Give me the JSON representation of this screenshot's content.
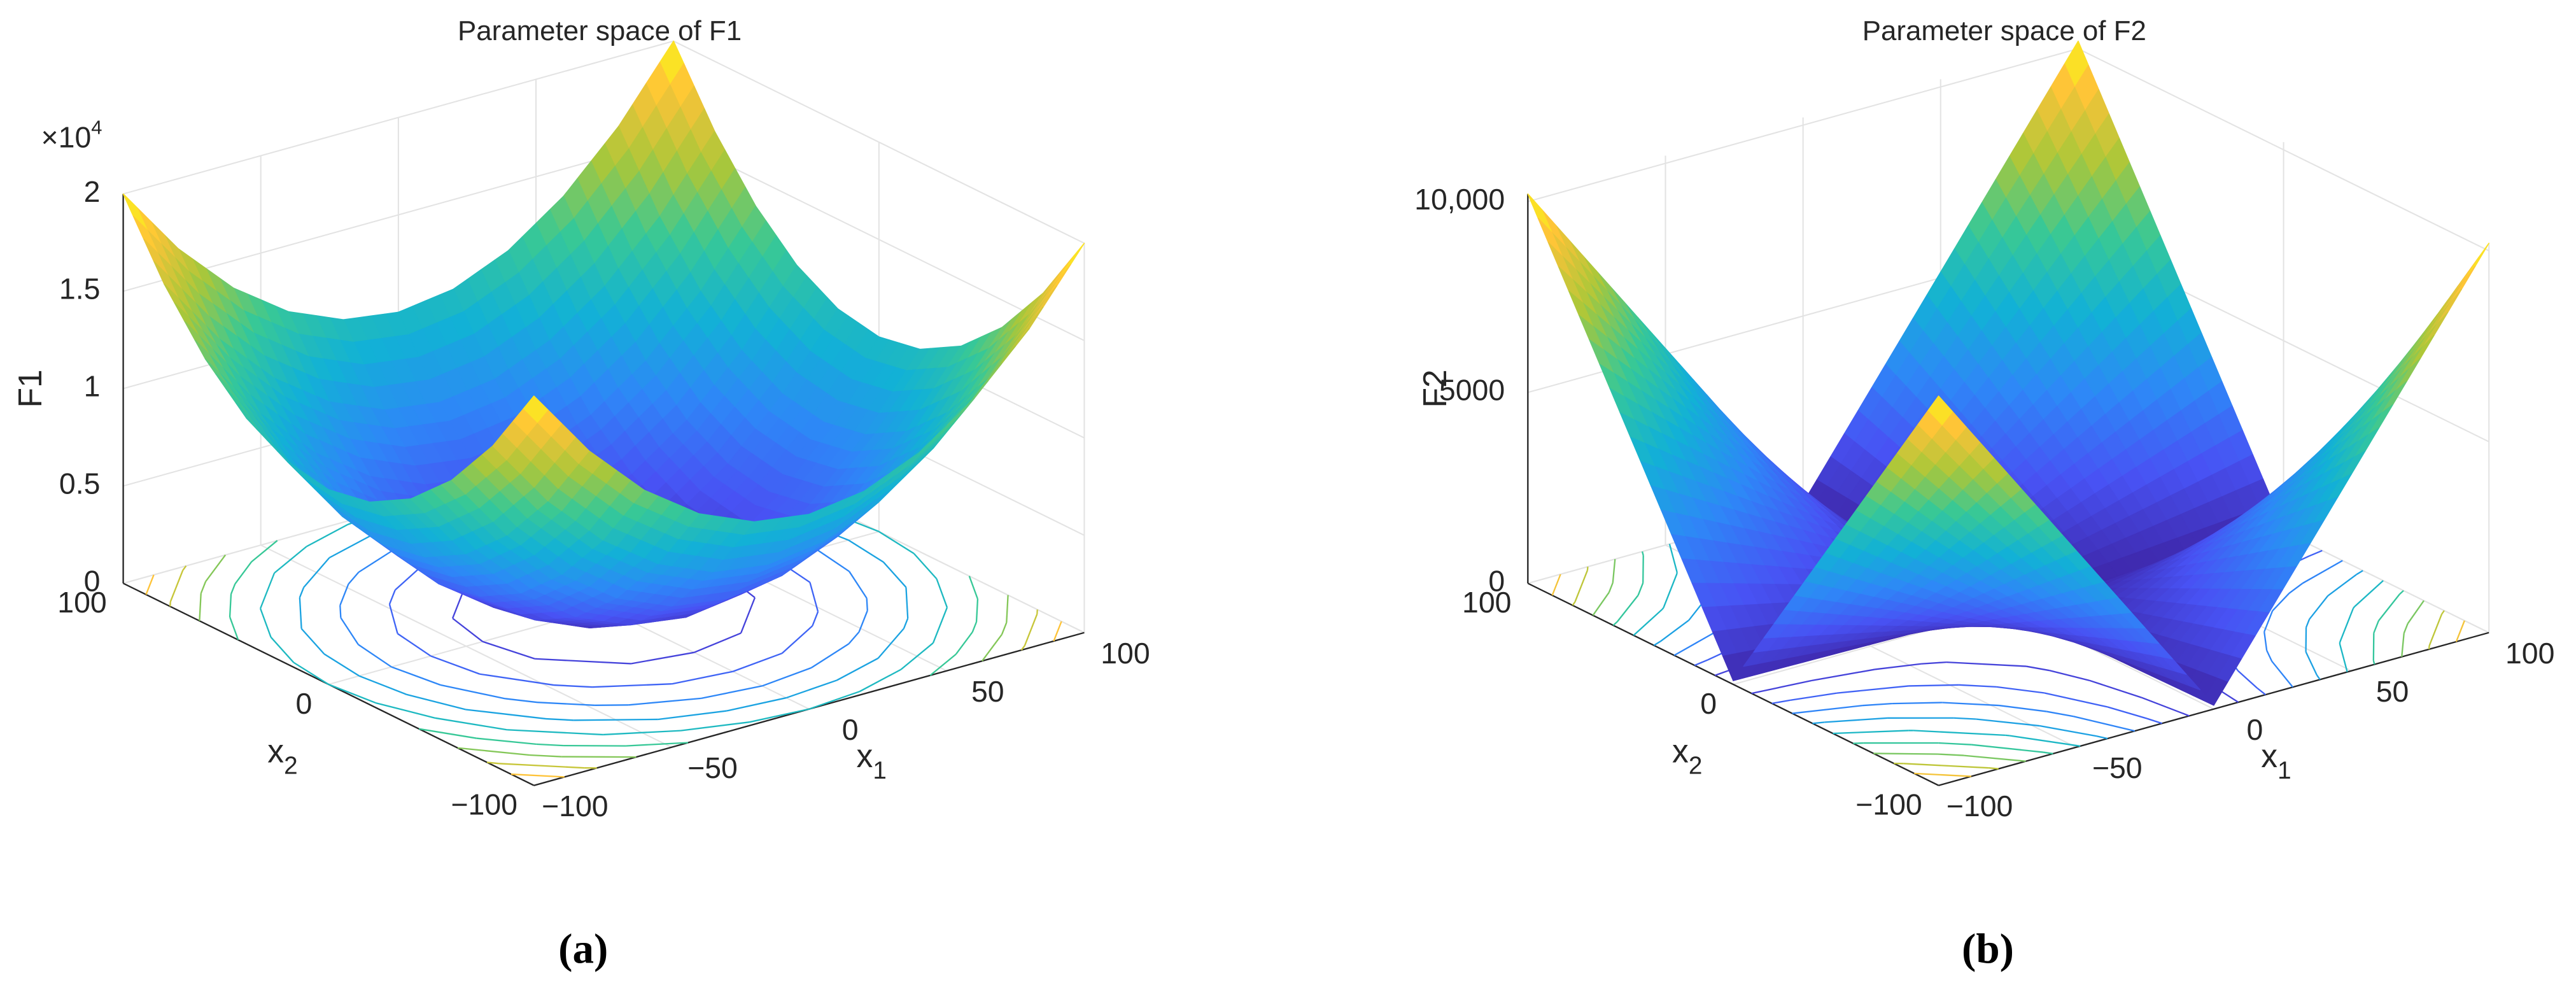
{
  "chart_data": [
    {
      "type": "surface",
      "title": "Parameter space of F1",
      "caption": "(a)",
      "xlabel": {
        "text": "x",
        "subscript": "1"
      },
      "ylabel": {
        "text": "x",
        "subscript": "2"
      },
      "zlabel": "F1",
      "z_multiplier": {
        "base": "×10",
        "exponent": "4"
      },
      "x": [
        -100,
        -80,
        -60,
        -40,
        -20,
        0,
        20,
        40,
        60,
        80,
        100
      ],
      "y": [
        -100,
        -80,
        -60,
        -40,
        -20,
        0,
        20,
        40,
        60,
        80,
        100
      ],
      "z": [
        [
          20000,
          16400,
          13600,
          11600,
          10400,
          10000,
          10400,
          11600,
          13600,
          16400,
          20000
        ],
        [
          16400,
          12800,
          10000,
          8000,
          6800,
          6400,
          6800,
          8000,
          10000,
          12800,
          16400
        ],
        [
          13600,
          10000,
          7200,
          5200,
          4000,
          3600,
          4000,
          5200,
          7200,
          10000,
          13600
        ],
        [
          11600,
          8000,
          5200,
          3200,
          2000,
          1600,
          2000,
          3200,
          5200,
          8000,
          11600
        ],
        [
          10400,
          6800,
          4000,
          2000,
          800,
          400,
          800,
          2000,
          4000,
          6800,
          10400
        ],
        [
          10000,
          6400,
          3600,
          1600,
          400,
          0,
          400,
          1600,
          3600,
          6400,
          10000
        ],
        [
          10400,
          6800,
          4000,
          2000,
          800,
          400,
          800,
          2000,
          4000,
          6800,
          10400
        ],
        [
          11600,
          8000,
          5200,
          3200,
          2000,
          1600,
          2000,
          3200,
          5200,
          8000,
          11600
        ],
        [
          13600,
          10000,
          7200,
          5200,
          4000,
          3600,
          4000,
          5200,
          7200,
          10000,
          13600
        ],
        [
          16400,
          12800,
          10000,
          8000,
          6800,
          6400,
          6800,
          8000,
          10000,
          12800,
          16400
        ],
        [
          20000,
          16400,
          13600,
          11600,
          10400,
          10000,
          10400,
          11600,
          13600,
          16400,
          20000
        ]
      ],
      "xlim": [
        -100,
        100
      ],
      "ylim": [
        -100,
        100
      ],
      "zlim": [
        0,
        20000
      ],
      "xticks": [
        {
          "value": -100,
          "label": "−100"
        },
        {
          "value": -50,
          "label": "−50"
        },
        0,
        50,
        100
      ],
      "yticks": [
        {
          "value": -100,
          "label": "−100"
        },
        0,
        100
      ],
      "zticks": [
        0,
        {
          "value": 5000,
          "label": "0.5"
        },
        {
          "value": 10000,
          "label": "1"
        },
        {
          "value": 15000,
          "label": "1.5"
        },
        {
          "value": 20000,
          "label": "2"
        }
      ],
      "contour_levels": [
        2000,
        4000,
        6000,
        8000,
        10000,
        12000,
        14000,
        16000,
        18000
      ],
      "colormap": "parula",
      "grid": true
    },
    {
      "type": "surface",
      "title": "Parameter space of F2",
      "caption": "(b)",
      "xlabel": {
        "text": "x",
        "subscript": "1"
      },
      "ylabel": {
        "text": "x",
        "subscript": "2"
      },
      "zlabel": "F2",
      "x": [
        -100,
        -80,
        -60,
        -40,
        -20,
        0,
        20,
        40,
        60,
        80,
        100
      ],
      "y": [
        -100,
        -80,
        -60,
        -40,
        -20,
        0,
        20,
        40,
        60,
        80,
        100
      ],
      "z": [
        [
          10200,
          8180,
          6160,
          4140,
          2120,
          100,
          2120,
          4140,
          6160,
          8180,
          10200
        ],
        [
          8180,
          6560,
          4940,
          3320,
          1700,
          80,
          1700,
          3320,
          4940,
          6560,
          8180
        ],
        [
          6160,
          4940,
          3720,
          2500,
          1280,
          60,
          1280,
          2500,
          3720,
          4940,
          6160
        ],
        [
          4140,
          3320,
          2500,
          1680,
          860,
          40,
          860,
          1680,
          2500,
          3320,
          4140
        ],
        [
          2120,
          1700,
          1280,
          860,
          440,
          20,
          440,
          860,
          1280,
          1700,
          2120
        ],
        [
          100,
          80,
          60,
          40,
          20,
          0,
          20,
          40,
          60,
          80,
          100
        ],
        [
          2120,
          1700,
          1280,
          860,
          440,
          20,
          440,
          860,
          1280,
          1700,
          2120
        ],
        [
          4140,
          3320,
          2500,
          1680,
          860,
          40,
          860,
          1680,
          2500,
          3320,
          4140
        ],
        [
          6160,
          4940,
          3720,
          2500,
          1280,
          60,
          1280,
          2500,
          3720,
          4940,
          6160
        ],
        [
          8180,
          6560,
          4940,
          3320,
          1700,
          80,
          1700,
          3320,
          4940,
          6560,
          8180
        ],
        [
          10200,
          8180,
          6160,
          4140,
          2120,
          100,
          2120,
          4140,
          6160,
          8180,
          10200
        ]
      ],
      "xlim": [
        -100,
        100
      ],
      "ylim": [
        -100,
        100
      ],
      "zlim": [
        0,
        10200
      ],
      "xticks": [
        {
          "value": -100,
          "label": "−100"
        },
        {
          "value": -50,
          "label": "−50"
        },
        0,
        50,
        100
      ],
      "yticks": [
        {
          "value": -100,
          "label": "−100"
        },
        0,
        100
      ],
      "zticks": [
        0,
        5000,
        {
          "value": 10000,
          "label": "10,000"
        }
      ],
      "contour_levels": [
        1000,
        2000,
        3000,
        4000,
        5000,
        6000,
        7000,
        8000,
        9000
      ],
      "colormap": "parula",
      "grid": true
    }
  ]
}
